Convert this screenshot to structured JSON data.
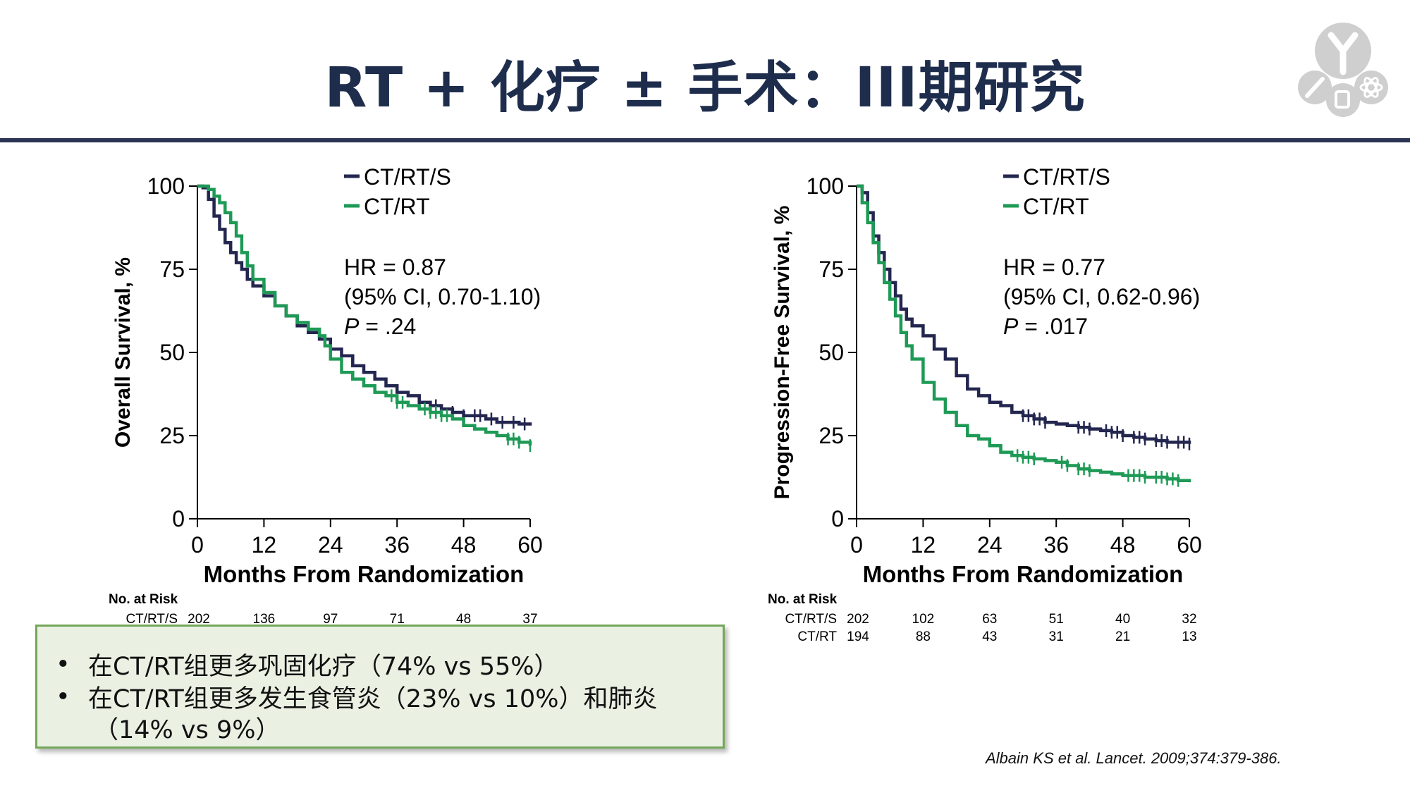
{
  "slide": {
    "title": "RT + 化疗 ± 手术：III期研究",
    "bullets": [
      {
        "line1": "在CT/RT组更多巩固化疗（74% vs 55%）",
        "line2": ""
      },
      {
        "line1": "在CT/RT组更多发生食管炎（23% vs 10%）和肺炎",
        "line2": "（14% vs 9%）"
      }
    ],
    "citation": "Albain KS et al. Lancet. 2009;374:379-386."
  },
  "colors": {
    "ctrts": "#23264f",
    "ctrt": "#1e9a56",
    "title": "#1f2d4d",
    "rule": "#2b3553"
  },
  "chart_data": [
    {
      "type": "line",
      "title": "",
      "xlabel": "Months From Randomization",
      "ylabel": "Overall Survival, %",
      "xlim": [
        0,
        60
      ],
      "ylim": [
        0,
        100
      ],
      "xticks": [
        0,
        12,
        24,
        36,
        48,
        60
      ],
      "yticks": [
        0,
        25,
        50,
        75,
        100
      ],
      "legend_position": "top-right",
      "series": [
        {
          "name": "CT/RT/S",
          "color": "#23264f",
          "points": [
            [
              0,
              100
            ],
            [
              1,
              99.5
            ],
            [
              2,
              96
            ],
            [
              3,
              91
            ],
            [
              4,
              87
            ],
            [
              5,
              83
            ],
            [
              6,
              80
            ],
            [
              7,
              77
            ],
            [
              8,
              75
            ],
            [
              9,
              72
            ],
            [
              10,
              70
            ],
            [
              12,
              67
            ],
            [
              14,
              64
            ],
            [
              16,
              61
            ],
            [
              18,
              58
            ],
            [
              20,
              56
            ],
            [
              22,
              54
            ],
            [
              24,
              51
            ],
            [
              26,
              49
            ],
            [
              28,
              46
            ],
            [
              30,
              44
            ],
            [
              32,
              42
            ],
            [
              34,
              40
            ],
            [
              36,
              38
            ],
            [
              38,
              37
            ],
            [
              40,
              35
            ],
            [
              42,
              34
            ],
            [
              44,
              33
            ],
            [
              46,
              32
            ],
            [
              48,
              31
            ],
            [
              50,
              31
            ],
            [
              52,
              30
            ],
            [
              54,
              29
            ],
            [
              56,
              29
            ],
            [
              58,
              28.5
            ],
            [
              60,
              28
            ]
          ],
          "censors": [
            40,
            43,
            46,
            48,
            50,
            51,
            53,
            55,
            57,
            59
          ]
        },
        {
          "name": "CT/RT",
          "color": "#1e9a56",
          "points": [
            [
              0,
              100
            ],
            [
              2,
              99
            ],
            [
              3,
              97
            ],
            [
              4,
              95
            ],
            [
              5,
              92
            ],
            [
              6,
              89
            ],
            [
              7,
              85
            ],
            [
              8,
              80
            ],
            [
              9,
              76
            ],
            [
              10,
              72
            ],
            [
              12,
              68
            ],
            [
              14,
              64
            ],
            [
              16,
              61
            ],
            [
              18,
              59
            ],
            [
              20,
              57
            ],
            [
              22,
              55
            ],
            [
              23,
              52
            ],
            [
              24,
              48
            ],
            [
              26,
              44
            ],
            [
              28,
              42
            ],
            [
              30,
              40
            ],
            [
              32,
              38
            ],
            [
              34,
              37
            ],
            [
              36,
              35
            ],
            [
              38,
              34
            ],
            [
              40,
              33
            ],
            [
              42,
              32
            ],
            [
              44,
              31
            ],
            [
              46,
              30
            ],
            [
              48,
              28
            ],
            [
              50,
              27
            ],
            [
              52,
              26
            ],
            [
              54,
              25
            ],
            [
              56,
              24
            ],
            [
              58,
              23
            ],
            [
              60,
              22
            ]
          ],
          "censors": [
            35,
            36,
            37,
            41,
            42,
            43,
            44,
            45,
            56,
            57,
            58,
            60
          ]
        }
      ],
      "annotations": [
        "HR = 0.87",
        "(95% CI, 0.70-1.10)",
        "P = .24"
      ],
      "risk_table": {
        "header": "No. at Risk",
        "rows": [
          {
            "label": "CT/RT/S",
            "values": [
              202,
              136,
              97,
              71,
              48,
              37
            ]
          }
        ]
      }
    },
    {
      "type": "line",
      "title": "",
      "xlabel": "Months From Randomization",
      "ylabel": "Progression-Free Survival, %",
      "xlim": [
        0,
        60
      ],
      "ylim": [
        0,
        100
      ],
      "xticks": [
        0,
        12,
        24,
        36,
        48,
        60
      ],
      "yticks": [
        0,
        25,
        50,
        75,
        100
      ],
      "legend_position": "top-right",
      "series": [
        {
          "name": "CT/RT/S",
          "color": "#23264f",
          "points": [
            [
              0,
              100
            ],
            [
              1,
              98
            ],
            [
              2,
              92
            ],
            [
              3,
              85
            ],
            [
              4,
              80
            ],
            [
              5,
              75
            ],
            [
              6,
              71
            ],
            [
              7,
              67
            ],
            [
              8,
              63
            ],
            [
              9,
              60
            ],
            [
              10,
              58
            ],
            [
              12,
              55
            ],
            [
              14,
              51
            ],
            [
              16,
              48
            ],
            [
              18,
              43
            ],
            [
              20,
              39
            ],
            [
              22,
              37
            ],
            [
              24,
              35
            ],
            [
              26,
              34
            ],
            [
              28,
              32
            ],
            [
              30,
              31
            ],
            [
              32,
              30
            ],
            [
              34,
              29
            ],
            [
              36,
              28.5
            ],
            [
              38,
              28
            ],
            [
              40,
              27.5
            ],
            [
              42,
              27
            ],
            [
              44,
              26.5
            ],
            [
              46,
              26
            ],
            [
              48,
              25
            ],
            [
              50,
              24.5
            ],
            [
              52,
              24
            ],
            [
              54,
              23.5
            ],
            [
              56,
              23
            ],
            [
              58,
              23
            ],
            [
              60,
              22.5
            ]
          ],
          "censors": [
            30,
            31,
            32,
            33,
            34,
            40,
            41,
            42,
            45,
            46,
            47,
            48,
            50,
            51,
            52,
            54,
            55,
            56,
            58,
            59,
            60
          ]
        },
        {
          "name": "CT/RT",
          "color": "#1e9a56",
          "points": [
            [
              0,
              100
            ],
            [
              1,
              95
            ],
            [
              2,
              89
            ],
            [
              3,
              83
            ],
            [
              4,
              77
            ],
            [
              5,
              71
            ],
            [
              6,
              66
            ],
            [
              7,
              61
            ],
            [
              8,
              56
            ],
            [
              9,
              52
            ],
            [
              10,
              48
            ],
            [
              12,
              41
            ],
            [
              14,
              36
            ],
            [
              16,
              32
            ],
            [
              18,
              28
            ],
            [
              20,
              25
            ],
            [
              22,
              24
            ],
            [
              24,
              22
            ],
            [
              26,
              20
            ],
            [
              28,
              19
            ],
            [
              30,
              18.5
            ],
            [
              32,
              18
            ],
            [
              34,
              17.5
            ],
            [
              36,
              17
            ],
            [
              38,
              16
            ],
            [
              40,
              15
            ],
            [
              42,
              14.5
            ],
            [
              44,
              14
            ],
            [
              46,
              13.5
            ],
            [
              48,
              13
            ],
            [
              50,
              13
            ],
            [
              52,
              12.5
            ],
            [
              54,
              12.5
            ],
            [
              56,
              12
            ],
            [
              58,
              11.5
            ],
            [
              60,
              11
            ]
          ],
          "censors": [
            29,
            30,
            31,
            32,
            37,
            38,
            40,
            41,
            42,
            49,
            50,
            51,
            52,
            54,
            55,
            56,
            57,
            58
          ]
        }
      ],
      "annotations": [
        "HR = 0.77",
        "(95% CI, 0.62-0.96)",
        "P = .017"
      ],
      "risk_table": {
        "header": "No. at Risk",
        "rows": [
          {
            "label": "CT/RT/S",
            "values": [
              202,
              102,
              63,
              51,
              40,
              32
            ]
          },
          {
            "label": "CT/RT",
            "values": [
              194,
              88,
              43,
              31,
              21,
              13
            ]
          }
        ]
      }
    }
  ]
}
